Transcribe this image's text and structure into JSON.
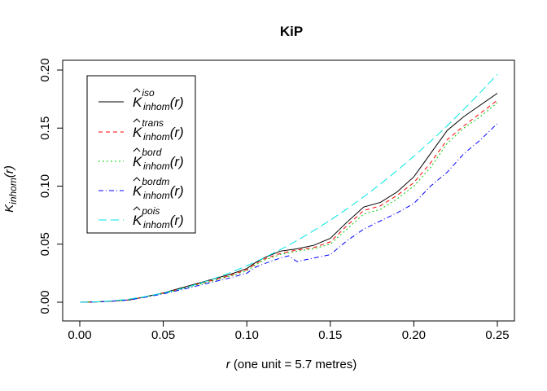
{
  "chart_data": {
    "type": "line",
    "title": "KiP",
    "xlabel_var": "r",
    "xlabel_rest": " (one unit = 5.7 metres)",
    "ylabel_main": "K",
    "ylabel_sub": "inhom",
    "ylabel_arg": "(r)",
    "xlim": [
      0,
      0.25
    ],
    "ylim": [
      0,
      0.2
    ],
    "x_ticks": [
      0.0,
      0.05,
      0.1,
      0.15,
      0.2,
      0.25
    ],
    "x_tick_labels": [
      "0.00",
      "0.05",
      "0.10",
      "0.15",
      "0.20",
      "0.25"
    ],
    "y_ticks": [
      0.0,
      0.05,
      0.1,
      0.15,
      0.2
    ],
    "y_tick_labels": [
      "0.00",
      "0.05",
      "0.10",
      "0.15",
      "0.20"
    ],
    "grid": false,
    "legend_position": "top-left",
    "series": [
      {
        "key": "iso",
        "legend_main": "K",
        "legend_sup": "iso",
        "legend_sub": "inhom",
        "legend_arg": "(r)",
        "color": "#000000",
        "dash": "",
        "x": [
          0,
          0.01,
          0.02,
          0.03,
          0.04,
          0.05,
          0.06,
          0.07,
          0.08,
          0.09,
          0.1,
          0.105,
          0.11,
          0.12,
          0.13,
          0.14,
          0.15,
          0.16,
          0.17,
          0.18,
          0.19,
          0.2,
          0.21,
          0.22,
          0.23,
          0.24,
          0.25
        ],
        "y": [
          0,
          0.0003,
          0.001,
          0.002,
          0.005,
          0.008,
          0.012,
          0.016,
          0.02,
          0.024,
          0.029,
          0.034,
          0.038,
          0.044,
          0.046,
          0.049,
          0.055,
          0.069,
          0.082,
          0.086,
          0.095,
          0.108,
          0.128,
          0.148,
          0.16,
          0.17,
          0.18
        ]
      },
      {
        "key": "trans",
        "legend_main": "K",
        "legend_sup": "trans",
        "legend_sub": "inhom",
        "legend_arg": "(r)",
        "color": "#ff0000",
        "dash": "5,4",
        "x": [
          0,
          0.01,
          0.02,
          0.03,
          0.04,
          0.05,
          0.06,
          0.07,
          0.08,
          0.09,
          0.1,
          0.105,
          0.11,
          0.12,
          0.13,
          0.14,
          0.15,
          0.16,
          0.17,
          0.18,
          0.19,
          0.2,
          0.21,
          0.22,
          0.23,
          0.24,
          0.25
        ],
        "y": [
          0,
          0.0003,
          0.001,
          0.002,
          0.0048,
          0.0078,
          0.0115,
          0.0155,
          0.019,
          0.023,
          0.028,
          0.033,
          0.037,
          0.042,
          0.045,
          0.047,
          0.052,
          0.066,
          0.079,
          0.083,
          0.092,
          0.103,
          0.12,
          0.14,
          0.152,
          0.163,
          0.174
        ]
      },
      {
        "key": "bord",
        "legend_main": "K",
        "legend_sup": "bord",
        "legend_sub": "inhom",
        "legend_arg": "(r)",
        "color": "#00cc00",
        "dash": "2,3",
        "x": [
          0,
          0.01,
          0.02,
          0.03,
          0.04,
          0.05,
          0.06,
          0.07,
          0.08,
          0.09,
          0.1,
          0.105,
          0.11,
          0.12,
          0.13,
          0.14,
          0.15,
          0.16,
          0.17,
          0.18,
          0.19,
          0.2,
          0.21,
          0.22,
          0.23,
          0.24,
          0.25
        ],
        "y": [
          0,
          0.0003,
          0.001,
          0.002,
          0.0047,
          0.0076,
          0.011,
          0.015,
          0.0185,
          0.0225,
          0.027,
          0.032,
          0.036,
          0.041,
          0.044,
          0.046,
          0.05,
          0.063,
          0.076,
          0.08,
          0.089,
          0.1,
          0.116,
          0.137,
          0.15,
          0.16,
          0.172
        ]
      },
      {
        "key": "bordm",
        "legend_main": "K",
        "legend_sup": "bordm",
        "legend_sub": "inhom",
        "legend_arg": "(r)",
        "color": "#0000ff",
        "dash": "6,3,1,3",
        "x": [
          0,
          0.01,
          0.02,
          0.03,
          0.04,
          0.05,
          0.06,
          0.07,
          0.08,
          0.09,
          0.1,
          0.105,
          0.11,
          0.12,
          0.125,
          0.13,
          0.14,
          0.15,
          0.16,
          0.17,
          0.18,
          0.19,
          0.2,
          0.21,
          0.22,
          0.23,
          0.24,
          0.25
        ],
        "y": [
          0,
          0.0003,
          0.001,
          0.002,
          0.0045,
          0.0072,
          0.0105,
          0.014,
          0.0175,
          0.021,
          0.025,
          0.03,
          0.033,
          0.038,
          0.04,
          0.035,
          0.038,
          0.041,
          0.053,
          0.063,
          0.07,
          0.077,
          0.085,
          0.1,
          0.112,
          0.128,
          0.14,
          0.154
        ]
      },
      {
        "key": "pois",
        "legend_main": "K",
        "legend_sup": "pois",
        "legend_sub": "inhom",
        "legend_arg": "(r)",
        "color": "#00e5e5",
        "dash": "10,5",
        "x": [
          0,
          0.01,
          0.02,
          0.03,
          0.04,
          0.05,
          0.06,
          0.07,
          0.08,
          0.09,
          0.1,
          0.11,
          0.12,
          0.13,
          0.14,
          0.15,
          0.16,
          0.17,
          0.18,
          0.19,
          0.2,
          0.21,
          0.22,
          0.23,
          0.24,
          0.25
        ],
        "y": [
          0,
          0.0003,
          0.0013,
          0.0028,
          0.005,
          0.0079,
          0.0113,
          0.0154,
          0.0201,
          0.0254,
          0.0314,
          0.038,
          0.0452,
          0.0531,
          0.0616,
          0.0707,
          0.0804,
          0.0908,
          0.1018,
          0.1134,
          0.1257,
          0.1385,
          0.152,
          0.1662,
          0.181,
          0.1963
        ]
      }
    ]
  }
}
